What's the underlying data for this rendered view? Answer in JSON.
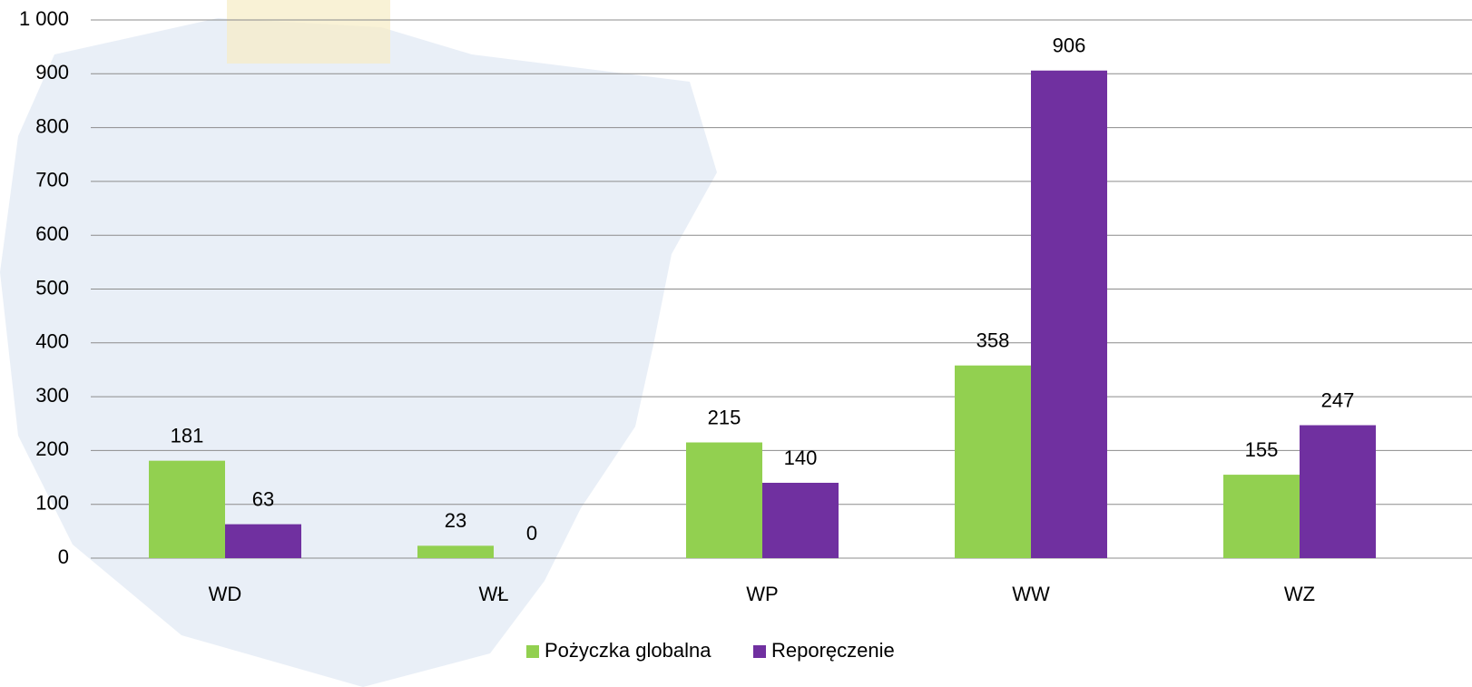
{
  "chart_data": {
    "type": "bar",
    "categories": [
      "WD",
      "WŁ",
      "WP",
      "WW",
      "WZ"
    ],
    "series": [
      {
        "name": "Pożyczka globalna",
        "color": "#92d050",
        "values": [
          181,
          23,
          215,
          358,
          155
        ]
      },
      {
        "name": "Reporęczenie",
        "color": "#7030a0",
        "values": [
          63,
          0,
          140,
          906,
          247
        ]
      }
    ],
    "ylim": [
      0,
      1000
    ],
    "yticks": [
      0,
      100,
      200,
      300,
      400,
      500,
      600,
      700,
      800,
      900,
      {
        "value": 1000,
        "label": "1 000"
      }
    ],
    "grid": true,
    "legend": "bottom"
  }
}
